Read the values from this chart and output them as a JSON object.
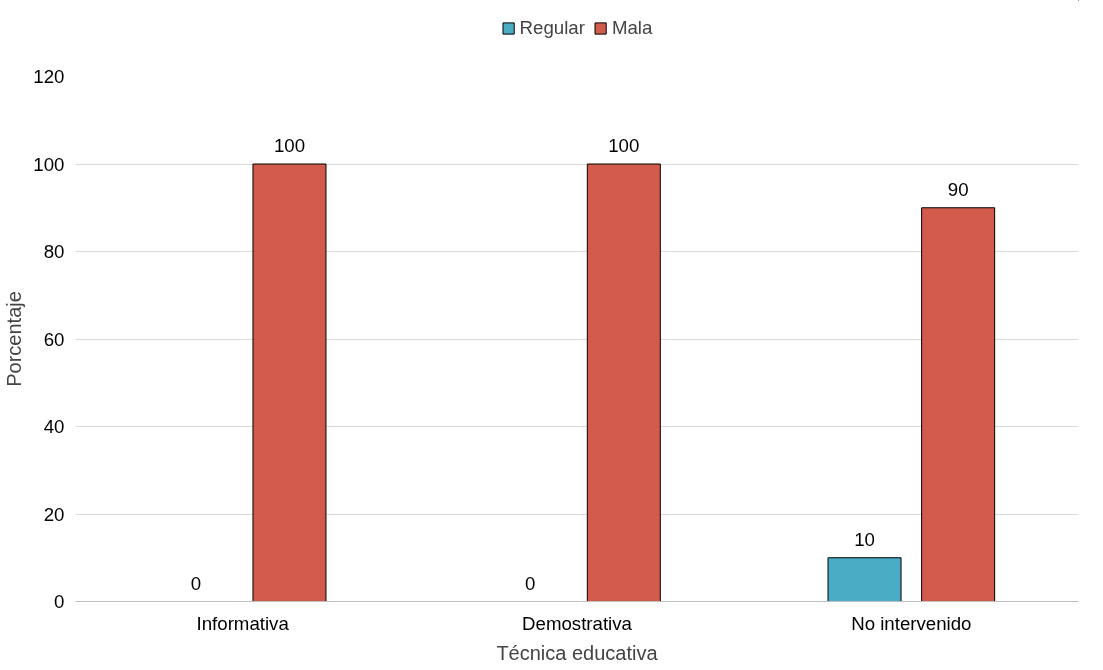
{
  "chart_data": {
    "type": "bar",
    "xlabel": "Técnica educativa",
    "ylabel": "Porcentaje",
    "categories": [
      "Informativa",
      "Demostrativa",
      "No intervenido"
    ],
    "series": [
      {
        "name": "Regular",
        "color": "#4bacc6",
        "values": [
          0,
          0,
          10
        ]
      },
      {
        "name": "Mala",
        "color": "#d35b4c",
        "values": [
          100,
          100,
          90
        ]
      }
    ],
    "ylim": [
      0,
      120
    ],
    "yticks": [
      0,
      20,
      40,
      60,
      80,
      100,
      120
    ],
    "grid": "y",
    "legend": "top",
    "data_labels": true
  }
}
